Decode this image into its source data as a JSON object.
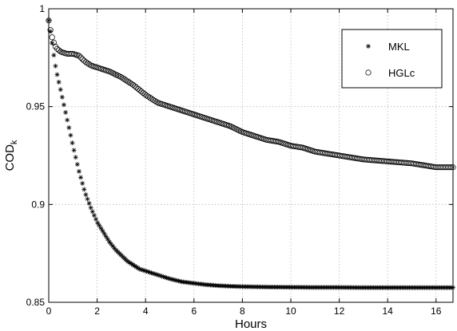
{
  "chart_data": {
    "type": "scatter",
    "title": "",
    "xlabel": "Hours",
    "ylabel": "COD",
    "ylabel_subscript": "k",
    "xlim": [
      0,
      16.7
    ],
    "ylim": [
      0.85,
      1.0
    ],
    "xticks": [
      "0",
      "2",
      "4",
      "6",
      "8",
      "10",
      "12",
      "14",
      "16"
    ],
    "yticks": [
      "0.85",
      "0.9",
      "0.95",
      "1"
    ],
    "grid": true,
    "legend_position": "top-right",
    "series": [
      {
        "name": "MKL",
        "marker": "star",
        "color": "#000000",
        "x": [
          0.0,
          0.1,
          0.2,
          0.3,
          0.5,
          0.75,
          1.0,
          1.25,
          1.5,
          1.75,
          2.0,
          2.25,
          2.5,
          2.75,
          3.0,
          3.25,
          3.5,
          3.75,
          4.0,
          4.25,
          4.5,
          5.0,
          5.5,
          6.0,
          6.5,
          7.0,
          7.5,
          8.0,
          9.0,
          10.0,
          11.0,
          12.0,
          13.0,
          14.0,
          15.0,
          16.0,
          16.7
        ],
        "y": [
          0.994,
          0.986,
          0.977,
          0.969,
          0.958,
          0.944,
          0.93,
          0.917,
          0.906,
          0.898,
          0.891,
          0.886,
          0.881,
          0.877,
          0.874,
          0.871,
          0.869,
          0.867,
          0.866,
          0.865,
          0.864,
          0.862,
          0.8605,
          0.8597,
          0.859,
          0.8585,
          0.8582,
          0.858,
          0.8578,
          0.8577,
          0.8576,
          0.8576,
          0.8575,
          0.8575,
          0.8575,
          0.8575,
          0.8575
        ]
      },
      {
        "name": "HGLc",
        "marker": "circle",
        "color": "#000000",
        "x": [
          0.0,
          0.1,
          0.2,
          0.3,
          0.5,
          0.75,
          1.0,
          1.25,
          1.5,
          1.75,
          2.0,
          2.5,
          3.0,
          3.5,
          4.0,
          4.5,
          5.0,
          5.5,
          6.0,
          6.5,
          7.0,
          7.5,
          8.0,
          8.5,
          9.0,
          9.5,
          10.0,
          10.5,
          11.0,
          11.5,
          12.0,
          12.5,
          13.0,
          13.5,
          14.0,
          14.5,
          15.0,
          15.5,
          16.0,
          16.5,
          16.7
        ],
        "y": [
          0.994,
          0.987,
          0.983,
          0.98,
          0.978,
          0.977,
          0.977,
          0.976,
          0.973,
          0.971,
          0.97,
          0.968,
          0.965,
          0.961,
          0.956,
          0.952,
          0.95,
          0.948,
          0.946,
          0.944,
          0.942,
          0.94,
          0.937,
          0.935,
          0.933,
          0.932,
          0.93,
          0.929,
          0.927,
          0.926,
          0.925,
          0.924,
          0.923,
          0.9225,
          0.922,
          0.9215,
          0.921,
          0.92,
          0.919,
          0.919,
          0.919
        ]
      }
    ]
  }
}
